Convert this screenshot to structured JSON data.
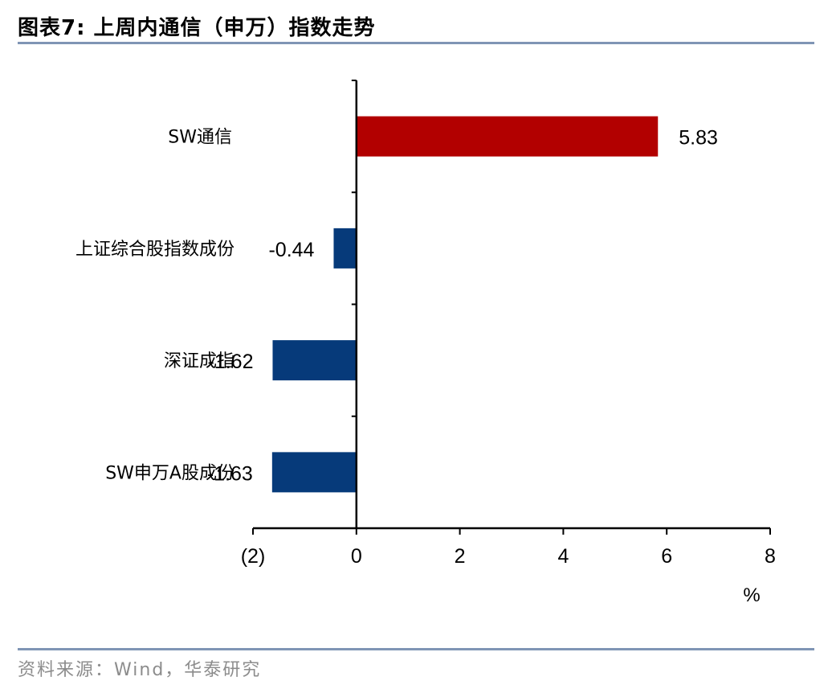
{
  "title": "图表7:  上周内通信（申万）指数走势",
  "source": "资料来源：Wind，华泰研究",
  "colors": {
    "positive": "#b20000",
    "negative": "#063a7a",
    "rule": "#7f95b5",
    "axis": "#000000"
  },
  "chart_data": {
    "type": "bar",
    "orientation": "horizontal",
    "categories": [
      "SW通信",
      "上证综合股指数成份",
      "深证成指",
      "SW申万A股成份"
    ],
    "values": [
      5.83,
      -0.44,
      -1.62,
      -1.63
    ],
    "value_labels": [
      "5.83",
      "-0.44",
      "-1.62",
      "-1.63"
    ],
    "xlim": [
      -2,
      8
    ],
    "xticks": [
      -2,
      0,
      2,
      4,
      6,
      8
    ],
    "xtick_labels": [
      "(2)",
      "0",
      "2",
      "4",
      "6",
      "8"
    ],
    "xlabel": "%",
    "grid": false,
    "legend": "none"
  }
}
